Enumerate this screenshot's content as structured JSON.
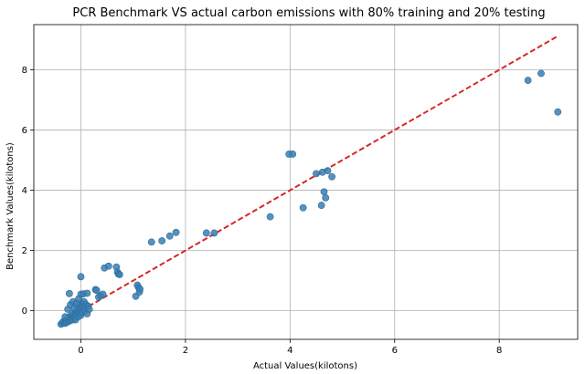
{
  "chart_data": {
    "type": "scatter",
    "title": "PCR Benchmark VS actual carbon emissions with 80% training and 20% testing",
    "xlabel": "Actual Values(kilotons)",
    "ylabel": "Benchmark Values(kilotons)",
    "xlim": [
      -0.9,
      9.5
    ],
    "ylim": [
      -0.95,
      9.5
    ],
    "xticks": [
      "0",
      "2",
      "4",
      "6",
      "8"
    ],
    "yticks": [
      "0",
      "2",
      "4",
      "6",
      "8"
    ],
    "xtick_values": [
      0,
      2,
      4,
      6,
      8
    ],
    "ytick_values": [
      0,
      2,
      4,
      6,
      8
    ],
    "grid": true,
    "colors": {
      "points": "#3a7fb4",
      "fit_line": "#d62728"
    },
    "series": [
      {
        "points": [
          [
            -0.38,
            -0.45
          ],
          [
            -0.35,
            -0.4
          ],
          [
            -0.33,
            -0.35
          ],
          [
            -0.3,
            -0.42
          ],
          [
            -0.28,
            -0.3
          ],
          [
            -0.27,
            -0.38
          ],
          [
            -0.25,
            -0.28
          ],
          [
            -0.23,
            -0.35
          ],
          [
            -0.22,
            -0.2
          ],
          [
            -0.2,
            -0.32
          ],
          [
            -0.18,
            -0.25
          ],
          [
            -0.17,
            -0.1
          ],
          [
            -0.15,
            -0.3
          ],
          [
            -0.14,
            -0.15
          ],
          [
            -0.12,
            -0.22
          ],
          [
            -0.1,
            -0.05
          ],
          [
            -0.1,
            -0.3
          ],
          [
            -0.08,
            -0.12
          ],
          [
            -0.07,
            0.02
          ],
          [
            -0.05,
            -0.2
          ],
          [
            -0.05,
            0.1
          ],
          [
            -0.03,
            -0.08
          ],
          [
            -0.02,
            0.18
          ],
          [
            0.0,
            0.05
          ],
          [
            0.0,
            -0.15
          ],
          [
            0.02,
            0.25
          ],
          [
            0.03,
            -0.05
          ],
          [
            0.05,
            0.12
          ],
          [
            0.06,
            0.3
          ],
          [
            0.08,
            0.0
          ],
          [
            0.1,
            0.2
          ],
          [
            0.12,
            -0.1
          ],
          [
            0.14,
            0.15
          ],
          [
            0.16,
            0.05
          ],
          [
            -0.3,
            -0.2
          ],
          [
            -0.25,
            0.05
          ],
          [
            -0.2,
            0.2
          ],
          [
            -0.15,
            0.3
          ],
          [
            -0.12,
            0.1
          ],
          [
            -0.08,
            0.25
          ],
          [
            -0.04,
            0.4
          ],
          [
            0.0,
            0.55
          ],
          [
            0.05,
            0.56
          ],
          [
            0.12,
            0.58
          ],
          [
            -0.22,
            0.57
          ],
          [
            0.0,
            1.13
          ],
          [
            0.28,
            0.7
          ],
          [
            0.3,
            0.68
          ],
          [
            0.34,
            0.45
          ],
          [
            0.38,
            0.5
          ],
          [
            0.42,
            0.55
          ],
          [
            0.45,
            1.42
          ],
          [
            0.53,
            1.48
          ],
          [
            0.68,
            1.45
          ],
          [
            0.7,
            1.28
          ],
          [
            0.72,
            1.22
          ],
          [
            0.74,
            1.2
          ],
          [
            1.05,
            0.48
          ],
          [
            1.08,
            0.85
          ],
          [
            1.1,
            0.78
          ],
          [
            1.12,
            0.62
          ],
          [
            1.13,
            0.72
          ],
          [
            1.35,
            2.28
          ],
          [
            1.55,
            2.32
          ],
          [
            1.7,
            2.48
          ],
          [
            1.82,
            2.6
          ],
          [
            2.4,
            2.58
          ],
          [
            2.55,
            2.58
          ],
          [
            3.62,
            3.12
          ],
          [
            3.98,
            5.2
          ],
          [
            4.05,
            5.2
          ],
          [
            4.25,
            3.42
          ],
          [
            4.5,
            4.55
          ],
          [
            4.6,
            3.5
          ],
          [
            4.62,
            4.6
          ],
          [
            4.65,
            3.95
          ],
          [
            4.68,
            3.75
          ],
          [
            4.72,
            4.65
          ],
          [
            4.8,
            4.45
          ],
          [
            8.55,
            7.65
          ],
          [
            8.8,
            7.88
          ],
          [
            9.12,
            6.6
          ]
        ]
      }
    ],
    "fit_line": {
      "from": [
        -0.4,
        -0.4
      ],
      "to": [
        9.12,
        9.12
      ]
    }
  }
}
